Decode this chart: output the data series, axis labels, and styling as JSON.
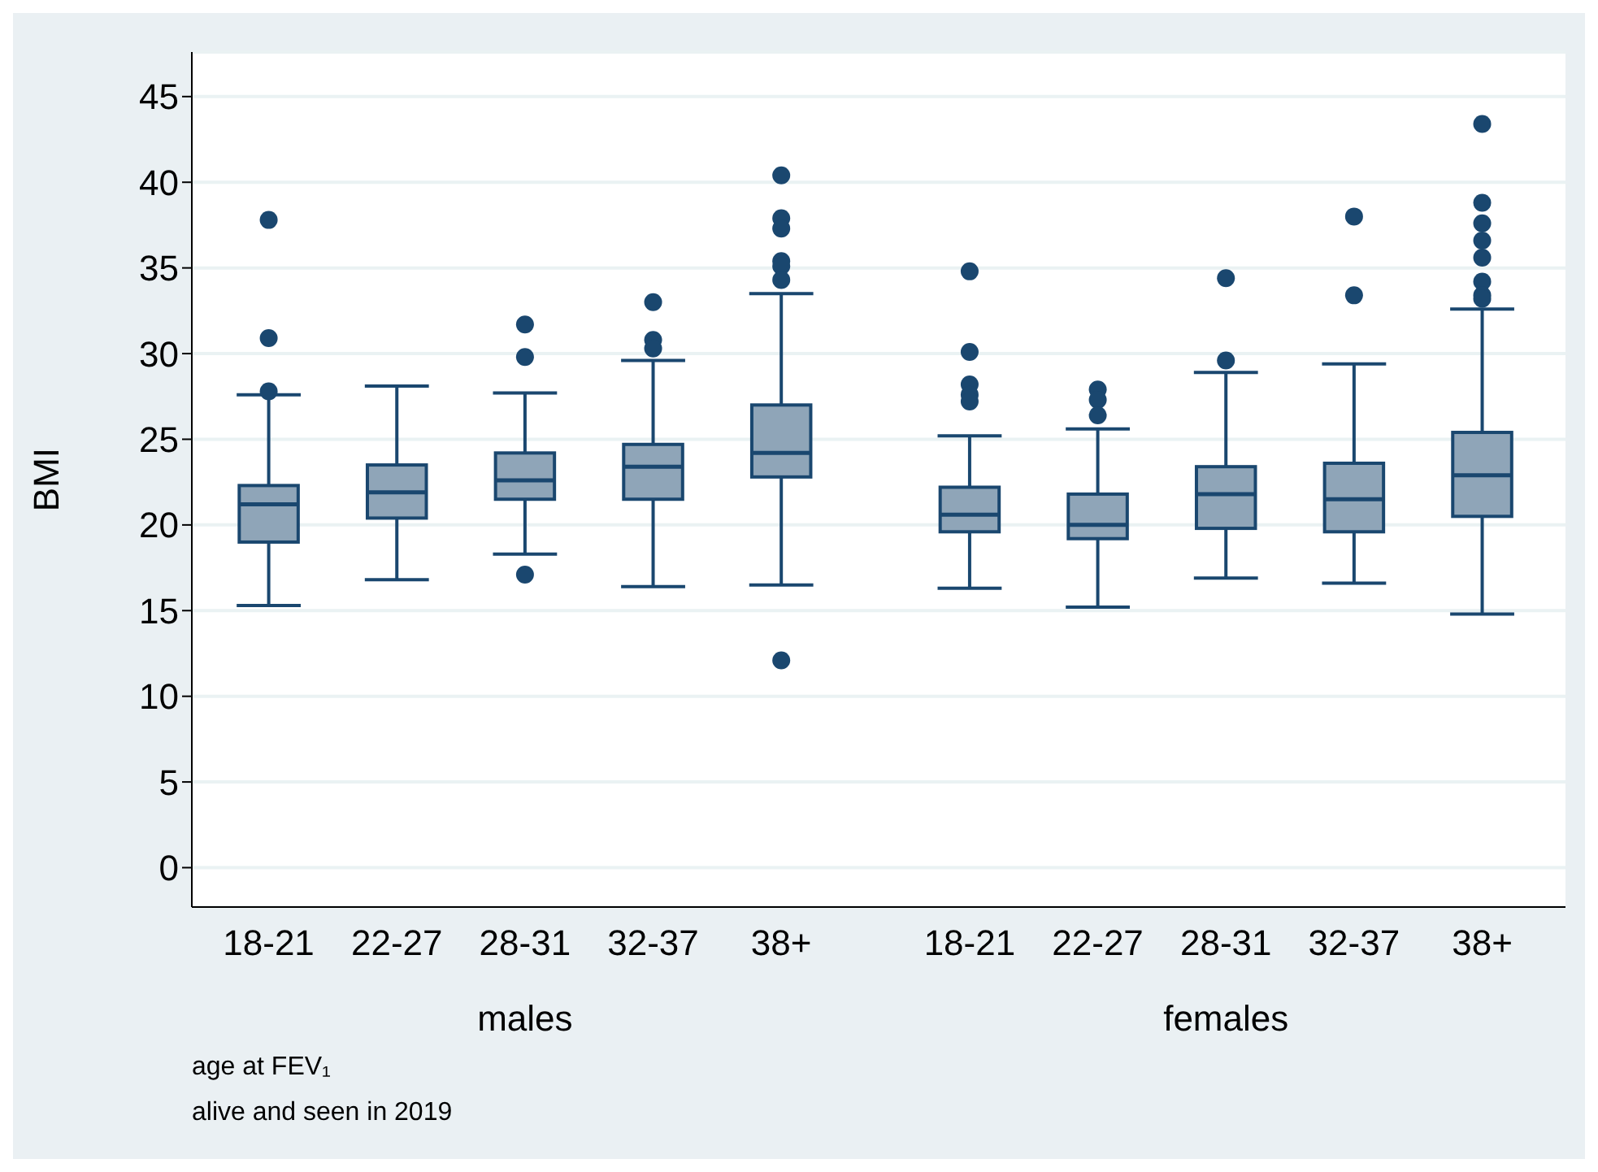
{
  "chart_data": {
    "type": "box",
    "ylabel": "BMI",
    "categories": [
      "18-21",
      "22-27",
      "28-31",
      "32-37",
      "38+",
      "18-21",
      "22-27",
      "28-31",
      "32-37",
      "38+"
    ],
    "color": "#8fa5b8",
    "boxes": [
      {
        "low": 15.3,
        "q1": 19.0,
        "median": 21.2,
        "q3": 22.3,
        "high": 27.6,
        "outliers": [
          37.8,
          30.9,
          27.8
        ]
      },
      {
        "low": 16.8,
        "q1": 20.4,
        "median": 21.9,
        "q3": 23.5,
        "high": 28.1
      },
      {
        "low": 18.3,
        "q1": 21.5,
        "median": 22.6,
        "q3": 24.2,
        "high": 27.7,
        "outliers": [
          31.7,
          29.8,
          17.1
        ]
      },
      {
        "low": 16.4,
        "q1": 21.5,
        "median": 23.4,
        "q3": 24.7,
        "high": 29.6,
        "outliers": [
          33.0,
          30.8,
          30.3
        ]
      },
      {
        "low": 16.5,
        "q1": 22.8,
        "median": 24.2,
        "q3": 27.0,
        "high": 33.5,
        "outliers": [
          40.4,
          37.9,
          37.3,
          35.4,
          35.1,
          34.3,
          12.1
        ]
      },
      {
        "low": 16.3,
        "q1": 19.6,
        "median": 20.6,
        "q3": 22.2,
        "high": 25.2,
        "outliers": [
          34.8,
          30.1,
          28.2,
          27.6,
          27.2
        ]
      },
      {
        "low": 15.2,
        "q1": 19.2,
        "median": 20.0,
        "q3": 21.8,
        "high": 25.6,
        "outliers": [
          27.9,
          27.3,
          26.4
        ]
      },
      {
        "low": 16.9,
        "q1": 19.8,
        "median": 21.8,
        "q3": 23.4,
        "high": 28.9,
        "outliers": [
          34.4,
          29.6
        ]
      },
      {
        "low": 16.6,
        "q1": 19.6,
        "median": 21.5,
        "q3": 23.6,
        "high": 29.4,
        "outliers": [
          38.0,
          33.4
        ]
      },
      {
        "low": 14.8,
        "q1": 20.5,
        "median": 22.9,
        "q3": 25.4,
        "high": 32.6,
        "outliers": [
          43.4,
          38.8,
          37.6,
          36.6,
          35.6,
          34.2,
          33.4,
          33.2
        ]
      }
    ],
    "ylim": [
      -2.3,
      47.6
    ],
    "yticks": [
      0,
      5,
      10,
      15,
      20,
      25,
      30,
      35,
      40,
      45
    ],
    "grid": "y",
    "annotations": [
      "males",
      "females",
      "age at FEV₁",
      "alive and seen in 2019"
    ]
  }
}
